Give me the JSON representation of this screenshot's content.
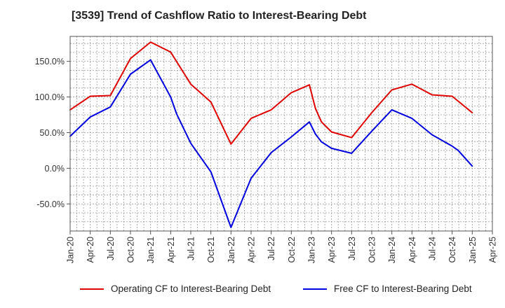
{
  "chart_data": {
    "type": "line",
    "title": "[3539]  Trend of Cashflow Ratio to Interest-Bearing Debt",
    "xlabel": "",
    "ylabel": "",
    "x": [
      "Jan-20",
      "Apr-20",
      "Jul-20",
      "Oct-20",
      "Jan-21",
      "Apr-21",
      "Jul-21",
      "Oct-21",
      "Jan-22",
      "Apr-22",
      "Jul-22",
      "Oct-22",
      "Jan-23",
      "Apr-23",
      "Jul-23",
      "Oct-23",
      "Jan-24",
      "Apr-24",
      "Jul-24",
      "Oct-24",
      "Jan-25",
      "Apr-25"
    ],
    "yticks": [
      "150.0%",
      "100.0%",
      "50.0%",
      "0.0%",
      "-50.0%"
    ],
    "ytick_values": [
      150,
      100,
      50,
      0,
      -50
    ],
    "ylim": [
      -88,
      185
    ],
    "grid": true,
    "legend_position": "bottom",
    "series": [
      {
        "name": "Operating CF to Interest-Bearing Debt",
        "color": "#e00000",
        "points": [
          [
            0,
            82
          ],
          [
            1,
            101
          ],
          [
            2,
            102
          ],
          [
            3,
            154
          ],
          [
            4,
            177
          ],
          [
            5,
            163
          ],
          [
            6,
            118
          ],
          [
            7,
            93
          ],
          [
            8,
            34
          ],
          [
            9,
            70
          ],
          [
            10,
            82
          ],
          [
            11,
            106
          ],
          [
            11.9,
            117
          ],
          [
            12.2,
            84
          ],
          [
            12.5,
            65
          ],
          [
            13,
            51
          ],
          [
            14,
            43
          ],
          [
            15,
            78
          ],
          [
            16,
            110
          ],
          [
            17,
            118
          ],
          [
            18,
            103
          ],
          [
            19,
            101
          ],
          [
            20,
            78
          ]
        ]
      },
      {
        "name": "Free CF to Interest-Bearing Debt",
        "color": "#0000e0",
        "points": [
          [
            0,
            45
          ],
          [
            1,
            72
          ],
          [
            2,
            86
          ],
          [
            3,
            132
          ],
          [
            4,
            152
          ],
          [
            5,
            100
          ],
          [
            5.3,
            76
          ],
          [
            6,
            35
          ],
          [
            6.5,
            15
          ],
          [
            7,
            -5
          ],
          [
            8,
            -83
          ],
          [
            9,
            -14
          ],
          [
            10,
            22
          ],
          [
            11,
            44
          ],
          [
            11.9,
            65
          ],
          [
            12.2,
            48
          ],
          [
            12.5,
            37
          ],
          [
            13,
            28
          ],
          [
            14,
            21
          ],
          [
            15,
            52
          ],
          [
            16,
            82
          ],
          [
            17,
            70
          ],
          [
            18,
            47
          ],
          [
            19,
            31
          ],
          [
            19.3,
            25
          ],
          [
            20,
            3
          ]
        ]
      }
    ]
  }
}
